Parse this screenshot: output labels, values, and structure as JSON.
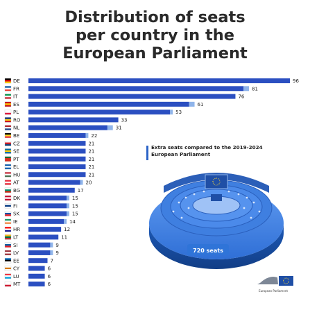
{
  "title_lines": [
    "Distribution of seats",
    "per country in the",
    "European Parliament"
  ],
  "legend": {
    "text": "Extra seats compared to the 2019-2024 European Parliament",
    "color": "#2b63c7"
  },
  "total_label": "720 seats",
  "logo_text": "European Parliament",
  "colors": {
    "bar": "#2b4fc1",
    "extra": "#8fb4ea",
    "hemicycle_top": "#4a8ae8",
    "hemicycle_dark": "#1b4fa8",
    "label_bg": "#2f74d8"
  },
  "chart_data": {
    "type": "bar",
    "orientation": "horizontal",
    "title": "Distribution of seats per country in the European Parliament",
    "categories": [
      "DE",
      "FR",
      "IT",
      "ES",
      "PL",
      "RO",
      "NL",
      "BE",
      "CZ",
      "SE",
      "PT",
      "EL",
      "HU",
      "AT",
      "BG",
      "DK",
      "FI",
      "SK",
      "IE",
      "HR",
      "LT",
      "SI",
      "LV",
      "EE",
      "CY",
      "LU",
      "MT"
    ],
    "values": [
      96,
      81,
      76,
      61,
      53,
      33,
      31,
      22,
      21,
      21,
      21,
      21,
      21,
      20,
      17,
      15,
      15,
      15,
      14,
      12,
      11,
      9,
      9,
      7,
      6,
      6,
      6
    ],
    "extra_seats": [
      0,
      2,
      0,
      2,
      1,
      0,
      2,
      1,
      0,
      0,
      0,
      0,
      0,
      1,
      0,
      1,
      1,
      1,
      1,
      0,
      0,
      1,
      1,
      0,
      0,
      0,
      0
    ],
    "legend": [
      "Extra seats compared to the 2019-2024 European Parliament"
    ],
    "total": "720 seats"
  }
}
